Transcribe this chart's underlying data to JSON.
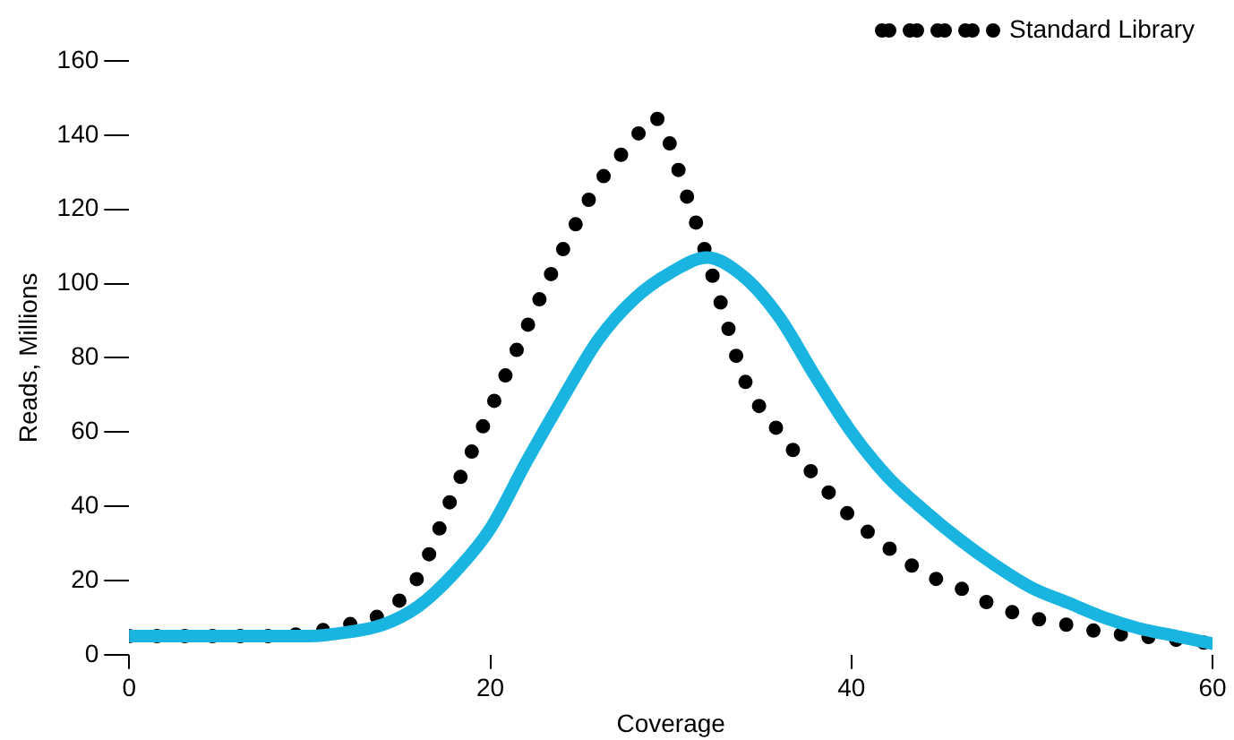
{
  "chart_data": {
    "type": "line",
    "xlabel": "Coverage",
    "ylabel": "Reads, Millions",
    "xlim": [
      0,
      60
    ],
    "xticks": [
      0,
      20,
      40,
      60
    ],
    "ylim": [
      0,
      160
    ],
    "yticks": [
      0,
      20,
      40,
      60,
      80,
      100,
      120,
      140,
      160
    ],
    "grid": false,
    "legend": "top right",
    "marker": "none",
    "series": [
      {
        "color": "#1ab4e0",
        "line_style": "solid",
        "x": [
          0,
          4,
          8,
          10,
          12,
          14,
          16,
          18,
          20,
          22,
          24,
          26,
          28,
          30,
          32,
          34,
          36,
          38,
          40,
          42,
          44,
          46,
          48,
          50,
          52,
          54,
          56,
          58,
          60
        ],
        "values": [
          5,
          5,
          5,
          5,
          6,
          8,
          13,
          22,
          34,
          52,
          69,
          85,
          96,
          103,
          107,
          102,
          91,
          75,
          60,
          48,
          39,
          31,
          24,
          18,
          14,
          10,
          7,
          5,
          3
        ]
      },
      {
        "name": "Standard Library",
        "color": "#000000",
        "line_style": "dotted",
        "x": [
          0,
          4,
          8,
          10,
          12,
          14,
          16,
          18,
          20,
          22,
          24,
          26,
          28,
          29,
          31,
          33,
          34,
          36,
          38,
          40,
          42,
          44,
          46,
          48,
          50,
          52,
          54,
          56,
          58,
          60
        ],
        "values": [
          5,
          5,
          5,
          6,
          8,
          11,
          21,
          44,
          66,
          88,
          109,
          127,
          139,
          145,
          122,
          91,
          75,
          60,
          48,
          37,
          29,
          22,
          18,
          13,
          10,
          8,
          6,
          5,
          4,
          3
        ]
      }
    ]
  }
}
